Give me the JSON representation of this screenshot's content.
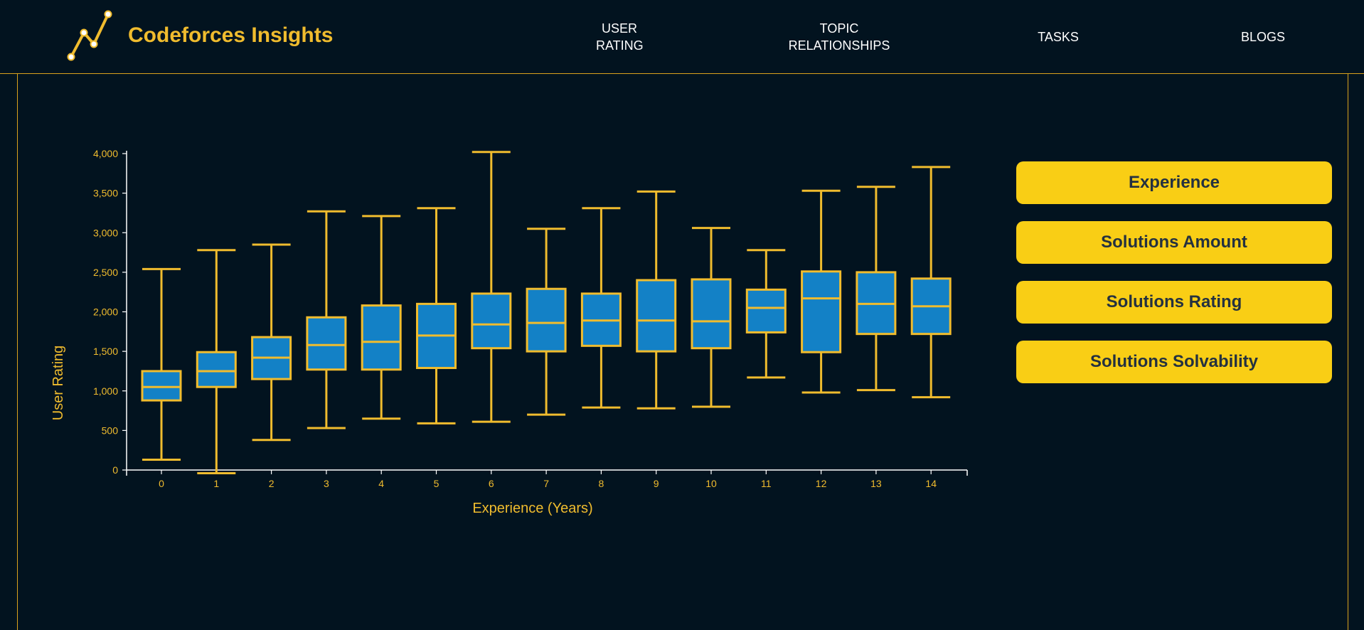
{
  "header": {
    "brand": "Codeforces Insights",
    "nav": [
      {
        "line1": "USER",
        "line2": "RATING"
      },
      {
        "line1": "TOPIC",
        "line2": "RELATIONSHIPS"
      },
      {
        "line1": "TASKS",
        "line2": ""
      },
      {
        "line1": "BLOGS",
        "line2": ""
      }
    ]
  },
  "buttons": [
    {
      "label": "Experience"
    },
    {
      "label": "Solutions Amount"
    },
    {
      "label": "Solutions Rating"
    },
    {
      "label": "Solutions Solvability"
    }
  ],
  "colors": {
    "background": "#02131f",
    "accent": "#f9ce15",
    "box_fill": "#1381c6",
    "whisker": "#f0bc2e"
  },
  "chart_data": {
    "type": "boxplot",
    "xlabel": "Experience (Years)",
    "ylabel": "User Rating",
    "ylim": [
      0,
      4000
    ],
    "yticks": [
      0,
      500,
      1000,
      1500,
      2000,
      2500,
      3000,
      3500,
      4000
    ],
    "ytick_labels": [
      "0",
      "500",
      "1,000",
      "1,500",
      "2,000",
      "2,500",
      "3,000",
      "3,500",
      "4,000"
    ],
    "categories": [
      "0",
      "1",
      "2",
      "3",
      "4",
      "5",
      "6",
      "7",
      "8",
      "9",
      "10",
      "11",
      "12",
      "13",
      "14"
    ],
    "boxes": [
      {
        "min": 130,
        "q1": 880,
        "median": 1050,
        "q3": 1250,
        "max": 2540
      },
      {
        "min": -40,
        "q1": 1050,
        "median": 1250,
        "q3": 1490,
        "max": 2780
      },
      {
        "min": 380,
        "q1": 1150,
        "median": 1420,
        "q3": 1680,
        "max": 2850
      },
      {
        "min": 530,
        "q1": 1270,
        "median": 1580,
        "q3": 1930,
        "max": 3270
      },
      {
        "min": 650,
        "q1": 1270,
        "median": 1620,
        "q3": 2080,
        "max": 3210
      },
      {
        "min": 590,
        "q1": 1290,
        "median": 1700,
        "q3": 2100,
        "max": 3310
      },
      {
        "min": 610,
        "q1": 1540,
        "median": 1840,
        "q3": 2230,
        "max": 4020
      },
      {
        "min": 700,
        "q1": 1500,
        "median": 1860,
        "q3": 2290,
        "max": 3050
      },
      {
        "min": 790,
        "q1": 1570,
        "median": 1890,
        "q3": 2230,
        "max": 3310
      },
      {
        "min": 780,
        "q1": 1500,
        "median": 1890,
        "q3": 2400,
        "max": 3520
      },
      {
        "min": 800,
        "q1": 1540,
        "median": 1880,
        "q3": 2410,
        "max": 3060
      },
      {
        "min": 1170,
        "q1": 1740,
        "median": 2050,
        "q3": 2280,
        "max": 2780
      },
      {
        "min": 980,
        "q1": 1490,
        "median": 2170,
        "q3": 2510,
        "max": 3530
      },
      {
        "min": 1010,
        "q1": 1720,
        "median": 2100,
        "q3": 2500,
        "max": 3580
      },
      {
        "min": 920,
        "q1": 1720,
        "median": 2070,
        "q3": 2420,
        "max": 3830
      }
    ]
  }
}
